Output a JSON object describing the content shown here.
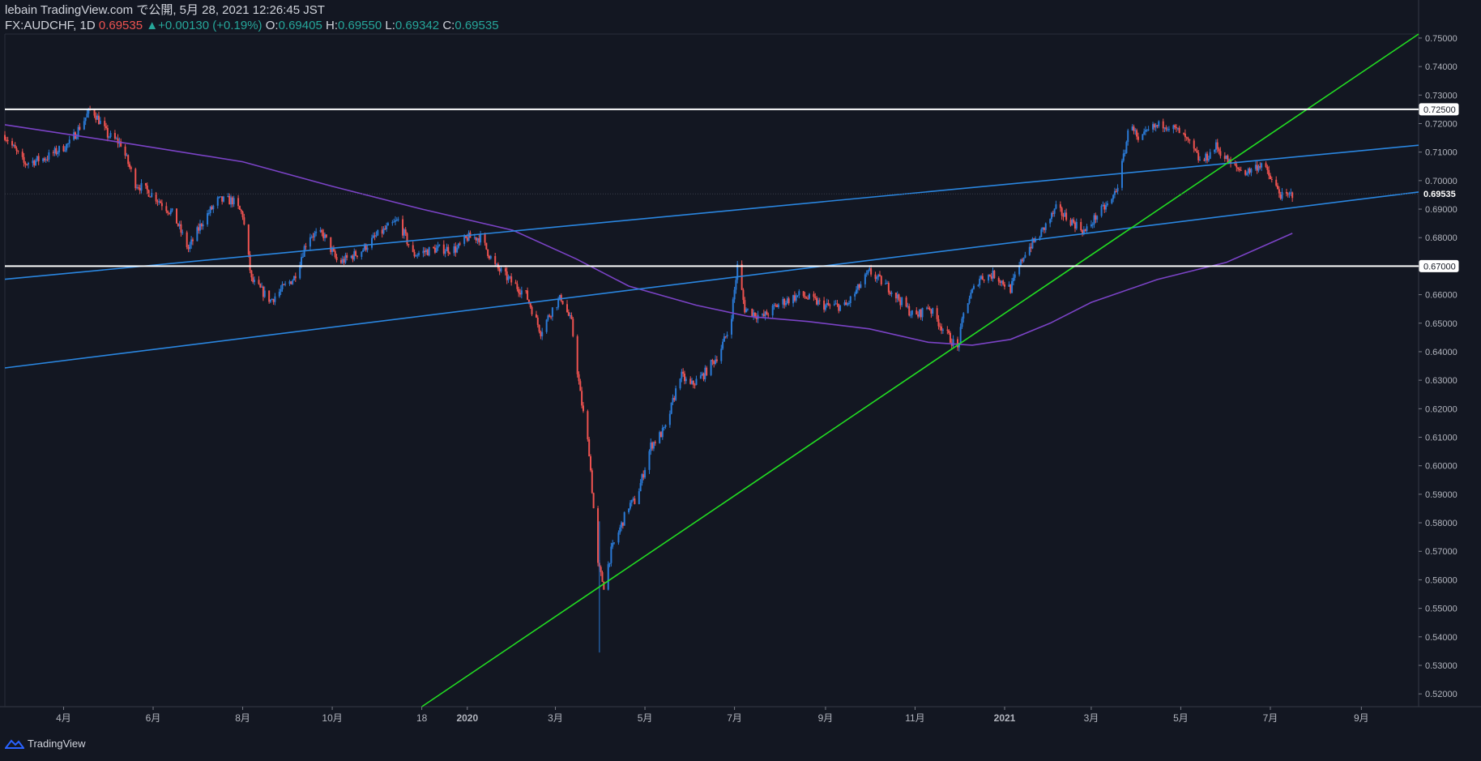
{
  "header": {
    "line1": "lebain TradingView.com で公開, 5月 28, 2021 12:26:45 JST",
    "symbol": "FX:AUDCHF, 1D",
    "last": "0.69535",
    "arrow": "▲",
    "change": "+0.00130 (+0.19%)",
    "o_label": "O:",
    "o_value": "0.69405",
    "h_label": "H:",
    "h_value": "0.69550",
    "l_label": "L:",
    "l_value": "0.69342",
    "c_label": "C:",
    "c_value": "0.69535"
  },
  "footer": {
    "brand": "TradingView",
    "icon": "tradingview-logo-icon"
  },
  "colors": {
    "background": "#131722",
    "up": "#2a7ad6",
    "down": "#ef5350",
    "ma": "#7b43c6",
    "channel": "#2a86e0",
    "trend": "#22dd22",
    "level": "#ffffff"
  },
  "chart_data": {
    "type": "candlestick",
    "title": "",
    "yaxis": {
      "range": [
        0.5155,
        0.7514
      ],
      "ticks": [
        "0.75000",
        "0.74000",
        "0.73000",
        "0.72000",
        "0.71000",
        "0.70000",
        "0.69000",
        "0.68000",
        "0.67000",
        "0.66000",
        "0.65000",
        "0.64000",
        "0.63000",
        "0.62000",
        "0.61000",
        "0.60000",
        "0.59000",
        "0.58000",
        "0.57000",
        "0.56000",
        "0.55000",
        "0.54000",
        "0.53000",
        "0.52000"
      ],
      "tick_values": [
        0.75,
        0.74,
        0.73,
        0.72,
        0.71,
        0.7,
        0.69,
        0.68,
        0.67,
        0.66,
        0.65,
        0.64,
        0.63,
        0.62,
        0.61,
        0.6,
        0.59,
        0.58,
        0.57,
        0.56,
        0.55,
        0.54,
        0.53,
        0.52
      ],
      "labeled_levels": [
        "0.72500",
        "0.69535",
        "0.67000"
      ],
      "labeled_values": [
        0.725,
        0.69535,
        0.67
      ]
    },
    "xaxis": {
      "range": [
        "2019-02-20",
        "2021-10-10"
      ],
      "ticks": [
        "4月",
        "6月",
        "8月",
        "10月",
        "18",
        "2020",
        "3月",
        "5月",
        "7月",
        "9月",
        "11月",
        "2021",
        "3月",
        "5月",
        "7月",
        "9月"
      ],
      "tick_dates": [
        "2019-04-01",
        "2019-06-01",
        "2019-08-01",
        "2019-10-01",
        "2019-12-01",
        "2020-01-01",
        "2020-03-01",
        "2020-05-01",
        "2020-07-01",
        "2020-09-01",
        "2020-11-01",
        "2021-01-01",
        "2021-03-01",
        "2021-05-01",
        "2021-07-01",
        "2021-09-01"
      ]
    },
    "price_path": [
      [
        "2019-02-20",
        0.716
      ],
      [
        "2019-03-05",
        0.706
      ],
      [
        "2019-03-20",
        0.708
      ],
      [
        "2019-04-05",
        0.713
      ],
      [
        "2019-04-20",
        0.7255
      ],
      [
        "2019-05-01",
        0.716
      ],
      [
        "2019-05-10",
        0.713
      ],
      [
        "2019-05-20",
        0.699
      ],
      [
        "2019-06-01",
        0.695
      ],
      [
        "2019-06-15",
        0.688
      ],
      [
        "2019-06-25",
        0.676
      ],
      [
        "2019-07-05",
        0.686
      ],
      [
        "2019-07-15",
        0.693
      ],
      [
        "2019-07-25",
        0.693
      ],
      [
        "2019-08-01",
        0.688
      ],
      [
        "2019-08-07",
        0.665
      ],
      [
        "2019-08-20",
        0.658
      ],
      [
        "2019-09-05",
        0.666
      ],
      [
        "2019-09-15",
        0.681
      ],
      [
        "2019-09-25",
        0.681
      ],
      [
        "2019-10-05",
        0.671
      ],
      [
        "2019-10-20",
        0.675
      ],
      [
        "2019-11-01",
        0.681
      ],
      [
        "2019-11-15",
        0.686
      ],
      [
        "2019-11-25",
        0.674
      ],
      [
        "2019-12-10",
        0.676
      ],
      [
        "2019-12-25",
        0.676
      ],
      [
        "2020-01-01",
        0.68
      ],
      [
        "2020-01-10",
        0.68
      ],
      [
        "2020-01-20",
        0.67
      ],
      [
        "2020-02-01",
        0.664
      ],
      [
        "2020-02-10",
        0.66
      ],
      [
        "2020-02-20",
        0.647
      ],
      [
        "2020-02-28",
        0.655
      ],
      [
        "2020-03-05",
        0.659
      ],
      [
        "2020-03-12",
        0.65
      ],
      [
        "2020-03-18",
        0.625
      ],
      [
        "2020-03-24",
        0.605
      ],
      [
        "2020-03-30",
        0.565
      ],
      [
        "2020-04-03",
        0.558
      ],
      [
        "2020-04-08",
        0.57
      ],
      [
        "2020-04-20",
        0.586
      ],
      [
        "2020-04-25",
        0.588
      ],
      [
        "2020-05-05",
        0.607
      ],
      [
        "2020-05-15",
        0.613
      ],
      [
        "2020-05-25",
        0.632
      ],
      [
        "2020-06-01",
        0.628
      ],
      [
        "2020-06-10",
        0.632
      ],
      [
        "2020-06-20",
        0.639
      ],
      [
        "2020-06-28",
        0.649
      ],
      [
        "2020-07-03",
        0.67
      ],
      [
        "2020-07-08",
        0.655
      ],
      [
        "2020-07-20",
        0.652
      ],
      [
        "2020-08-01",
        0.657
      ],
      [
        "2020-08-15",
        0.66
      ],
      [
        "2020-09-01",
        0.656
      ],
      [
        "2020-09-15",
        0.656
      ],
      [
        "2020-10-01",
        0.668
      ],
      [
        "2020-10-15",
        0.662
      ],
      [
        "2020-11-01",
        0.652
      ],
      [
        "2020-11-10",
        0.656
      ],
      [
        "2020-11-20",
        0.648
      ],
      [
        "2020-11-30",
        0.641
      ],
      [
        "2020-12-05",
        0.656
      ],
      [
        "2020-12-15",
        0.666
      ],
      [
        "2020-12-25",
        0.667
      ],
      [
        "2021-01-05",
        0.662
      ],
      [
        "2021-01-15",
        0.675
      ],
      [
        "2021-01-25",
        0.681
      ],
      [
        "2021-02-05",
        0.69
      ],
      [
        "2021-02-15",
        0.686
      ],
      [
        "2021-02-25",
        0.682
      ],
      [
        "2021-03-05",
        0.688
      ],
      [
        "2021-03-15",
        0.693
      ],
      [
        "2021-03-20",
        0.7
      ],
      [
        "2021-03-28",
        0.722
      ],
      [
        "2021-04-02",
        0.713
      ],
      [
        "2021-04-10",
        0.718
      ],
      [
        "2021-04-20",
        0.72
      ],
      [
        "2021-04-30",
        0.717
      ],
      [
        "2021-05-08",
        0.712
      ],
      [
        "2021-05-15",
        0.706
      ],
      [
        "2021-05-25",
        0.712
      ],
      [
        "2021-06-05",
        0.705
      ],
      [
        "2021-06-15",
        0.703
      ],
      [
        "2021-06-25",
        0.706
      ],
      [
        "2021-07-03",
        0.699
      ],
      [
        "2021-07-10",
        0.6935
      ],
      [
        "2021-07-16",
        0.6954
      ]
    ],
    "series": [
      {
        "type": "moving_average",
        "points": [
          [
            "2019-02-20",
            0.7196
          ],
          [
            "2019-05-15",
            0.713
          ],
          [
            "2019-08-01",
            0.7066
          ],
          [
            "2019-10-01",
            0.698
          ],
          [
            "2019-12-01",
            0.69
          ],
          [
            "2020-02-01",
            0.6826
          ],
          [
            "2020-03-15",
            0.6726
          ],
          [
            "2020-04-20",
            0.663
          ],
          [
            "2020-06-05",
            0.6563
          ],
          [
            "2020-07-10",
            0.6524
          ],
          [
            "2020-08-20",
            0.6506
          ],
          [
            "2020-10-01",
            0.648
          ],
          [
            "2020-11-10",
            0.6433
          ],
          [
            "2020-12-10",
            0.6423
          ],
          [
            "2021-01-05",
            0.6443
          ],
          [
            "2021-02-01",
            0.65
          ],
          [
            "2021-03-01",
            0.6573
          ],
          [
            "2021-04-15",
            0.6653
          ],
          [
            "2021-06-01",
            0.6713
          ],
          [
            "2021-07-16",
            0.6815
          ]
        ]
      },
      {
        "type": "trendline",
        "points": [
          [
            "2019-02-20",
            0.6654
          ],
          [
            "2021-10-10",
            0.7124
          ]
        ]
      },
      {
        "type": "trendline",
        "points": [
          [
            "2019-02-20",
            0.6343
          ],
          [
            "2021-10-10",
            0.696
          ]
        ]
      },
      {
        "type": "trendline",
        "points": [
          [
            "2019-12-01",
            0.5155
          ],
          [
            "2021-10-10",
            0.7514
          ]
        ]
      },
      {
        "type": "horizontal",
        "value": 0.725
      },
      {
        "type": "horizontal",
        "value": 0.67
      }
    ],
    "grid": false,
    "legend": "none"
  }
}
